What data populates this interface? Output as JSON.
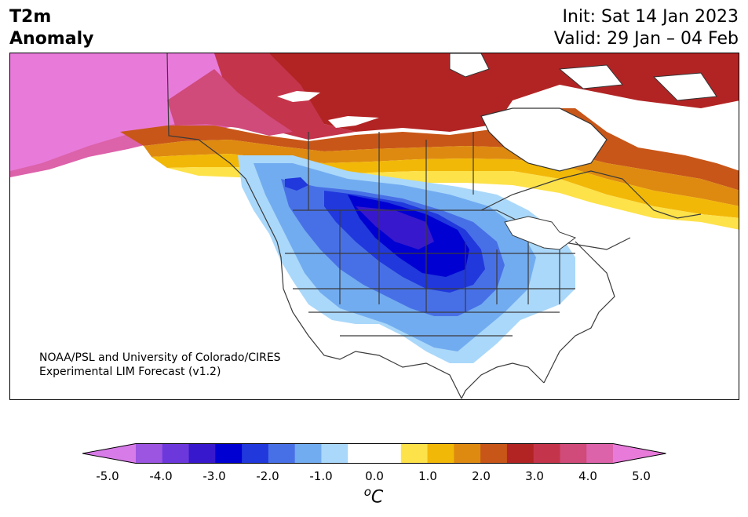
{
  "header": {
    "variable": "T2m",
    "quantity": "Anomaly",
    "init": "Init: Sat 14 Jan 2023",
    "valid": "Valid: 29 Jan – 04 Feb"
  },
  "credit": {
    "line1": "NOAA/PSL and University of Colorado/CIRES",
    "line2": "Experimental LIM Forecast (v1.2)"
  },
  "colorbar": {
    "tick_labels": [
      "-5.0",
      "-4.0",
      "-3.0",
      "-2.0",
      "-1.0",
      "0.0",
      "1.0",
      "2.0",
      "3.0",
      "4.0",
      "5.0"
    ],
    "units_base": "o",
    "units_letter": "C",
    "low_extend_color": "#d77be8",
    "high_extend_color": "#e87bda",
    "bins": [
      {
        "from": -4.5,
        "to": -4.0,
        "color": "#9b55e0"
      },
      {
        "from": -4.0,
        "to": -3.5,
        "color": "#6c38dc"
      },
      {
        "from": -3.5,
        "to": -3.0,
        "color": "#3818cc"
      },
      {
        "from": -3.0,
        "to": -2.5,
        "color": "#0000d2"
      },
      {
        "from": -2.5,
        "to": -2.0,
        "color": "#2038dc"
      },
      {
        "from": -2.0,
        "to": -1.5,
        "color": "#4870e6"
      },
      {
        "from": -1.5,
        "to": -1.0,
        "color": "#72acf0"
      },
      {
        "from": -1.0,
        "to": -0.5,
        "color": "#aad8fa"
      },
      {
        "from": -0.5,
        "to": 0.5,
        "color": "#ffffff"
      },
      {
        "from": 0.5,
        "to": 1.0,
        "color": "#fde24a"
      },
      {
        "from": 1.0,
        "to": 1.5,
        "color": "#f2b808"
      },
      {
        "from": 1.5,
        "to": 2.0,
        "color": "#de8a10"
      },
      {
        "from": 2.0,
        "to": 2.5,
        "color": "#c85618"
      },
      {
        "from": 2.5,
        "to": 3.0,
        "color": "#b22424"
      },
      {
        "from": 3.0,
        "to": 3.5,
        "color": "#c4344a"
      },
      {
        "from": 3.5,
        "to": 4.0,
        "color": "#d04a7a"
      },
      {
        "from": 4.0,
        "to": 4.5,
        "color": "#dc62aa"
      }
    ]
  }
}
